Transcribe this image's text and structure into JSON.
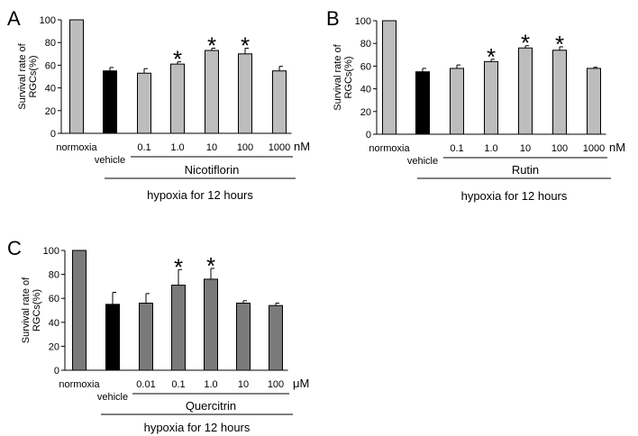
{
  "chart_data": [
    {
      "type": "bar",
      "panel_label": "A",
      "ylabel": "Survival rate of RGCs(%)",
      "ylim": [
        0,
        100
      ],
      "yticks": [
        0,
        20,
        40,
        60,
        80,
        100
      ],
      "categories": [
        "normoxia",
        "vehicle",
        "0.1",
        "1.0",
        "10",
        "100",
        "1000"
      ],
      "unit": "nM",
      "compound": "Nicotiflorin",
      "condition": "hypoxia for 12 hours",
      "values": [
        100,
        55,
        53,
        61,
        73,
        70,
        55
      ],
      "errors": [
        0,
        3,
        4,
        2,
        2,
        5,
        4
      ],
      "significant": [
        false,
        false,
        false,
        true,
        true,
        true,
        false
      ],
      "sig_marker": "*",
      "colors": [
        "#bdbdbd",
        "#000000",
        "#bdbdbd",
        "#bdbdbd",
        "#bdbdbd",
        "#bdbdbd",
        "#bdbdbd"
      ]
    },
    {
      "type": "bar",
      "panel_label": "B",
      "ylabel": "Survival rate of RGCs(%)",
      "ylim": [
        0,
        100
      ],
      "yticks": [
        0,
        20,
        40,
        60,
        80,
        100
      ],
      "categories": [
        "normoxia",
        "vehicle",
        "0.1",
        "1.0",
        "10",
        "100",
        "1000"
      ],
      "unit": "nM",
      "compound": "Rutin",
      "condition": "hypoxia for 12 hours",
      "values": [
        100,
        55,
        58,
        64,
        76,
        74,
        58
      ],
      "errors": [
        0,
        3,
        3,
        2,
        2,
        3,
        1
      ],
      "significant": [
        false,
        false,
        false,
        true,
        true,
        true,
        false
      ],
      "sig_marker": "*",
      "colors": [
        "#bdbdbd",
        "#000000",
        "#bdbdbd",
        "#bdbdbd",
        "#bdbdbd",
        "#bdbdbd",
        "#bdbdbd"
      ]
    },
    {
      "type": "bar",
      "panel_label": "C",
      "ylabel": "Survival rate of RGCs(%)",
      "ylim": [
        0,
        100
      ],
      "yticks": [
        0,
        20,
        40,
        60,
        80,
        100
      ],
      "categories": [
        "normoxia",
        "vehicle",
        "0.01",
        "0.1",
        "1.0",
        "10",
        "100"
      ],
      "unit": "μM",
      "compound": "Quercitrin",
      "condition": "hypoxia for 12 hours",
      "values": [
        100,
        55,
        56,
        71,
        76,
        56,
        54
      ],
      "errors": [
        0,
        10,
        8,
        13,
        9,
        2,
        2
      ],
      "significant": [
        false,
        false,
        false,
        true,
        true,
        false,
        false
      ],
      "sig_marker": "*",
      "colors": [
        "#7a7a7a",
        "#000000",
        "#7a7a7a",
        "#7a7a7a",
        "#7a7a7a",
        "#7a7a7a",
        "#7a7a7a"
      ]
    }
  ]
}
